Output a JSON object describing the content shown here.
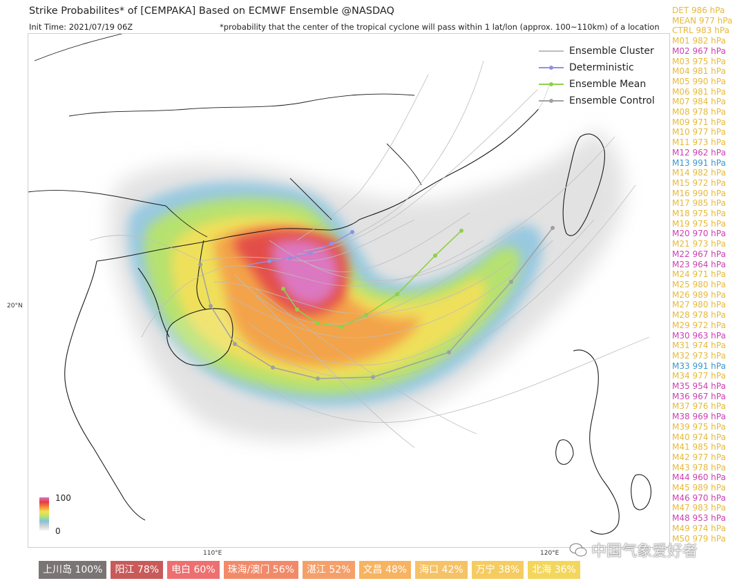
{
  "header": {
    "title": "Strike Probabilites* of [CEMPAKA] Based on ECMWF Ensemble  @NASDAQ",
    "init_time": "Init Time: 2021/07/19 06Z",
    "note": "*probability that the center of the tropical cyclone will pass within 1 lat/lon (approx. 100~110km) of a location"
  },
  "legend": {
    "items": [
      {
        "label": "Ensemble Cluster",
        "color": "#bdbdbd",
        "marker": "none"
      },
      {
        "label": "Deterministic",
        "color": "#9090e0",
        "marker": "dot"
      },
      {
        "label": "Ensemble Mean",
        "color": "#8ed04a",
        "marker": "dot"
      },
      {
        "label": "Ensemble Control",
        "color": "#a0a0a0",
        "marker": "dot"
      }
    ]
  },
  "members": [
    {
      "text": "DET 986 hPa",
      "color": "#e6b93a"
    },
    {
      "text": "MEAN 977 hPa",
      "color": "#e6b93a"
    },
    {
      "text": "CTRL 983 hPa",
      "color": "#e6b93a"
    },
    {
      "text": "M01 982 hPa",
      "color": "#e6b93a"
    },
    {
      "text": "M02 967 hPa",
      "color": "#cc3fb0"
    },
    {
      "text": "M03 975 hPa",
      "color": "#e6b93a"
    },
    {
      "text": "M04 981 hPa",
      "color": "#e6b93a"
    },
    {
      "text": "M05 990 hPa",
      "color": "#e6b93a"
    },
    {
      "text": "M06 981 hPa",
      "color": "#e6b93a"
    },
    {
      "text": "M07 984 hPa",
      "color": "#e6b93a"
    },
    {
      "text": "M08 978 hPa",
      "color": "#e6b93a"
    },
    {
      "text": "M09 971 hPa",
      "color": "#e6b93a"
    },
    {
      "text": "M10 977 hPa",
      "color": "#e6b93a"
    },
    {
      "text": "M11 973 hPa",
      "color": "#e6b93a"
    },
    {
      "text": "M12 962 hPa",
      "color": "#cc3fb0"
    },
    {
      "text": "M13 991 hPa",
      "color": "#3a98c8"
    },
    {
      "text": "M14 982 hPa",
      "color": "#e6b93a"
    },
    {
      "text": "M15 972 hPa",
      "color": "#e6b93a"
    },
    {
      "text": "M16 990 hPa",
      "color": "#e6b93a"
    },
    {
      "text": "M17 985 hPa",
      "color": "#e6b93a"
    },
    {
      "text": "M18 975 hPa",
      "color": "#e6b93a"
    },
    {
      "text": "M19 975 hPa",
      "color": "#e6b93a"
    },
    {
      "text": "M20 970 hPa",
      "color": "#cc3fb0"
    },
    {
      "text": "M21 973 hPa",
      "color": "#e6b93a"
    },
    {
      "text": "M22 967 hPa",
      "color": "#cc3fb0"
    },
    {
      "text": "M23 964 hPa",
      "color": "#cc3fb0"
    },
    {
      "text": "M24 971 hPa",
      "color": "#e6b93a"
    },
    {
      "text": "M25 980 hPa",
      "color": "#e6b93a"
    },
    {
      "text": "M26 989 hPa",
      "color": "#e6b93a"
    },
    {
      "text": "M27 980 hPa",
      "color": "#e6b93a"
    },
    {
      "text": "M28 978 hPa",
      "color": "#e6b93a"
    },
    {
      "text": "M29 972 hPa",
      "color": "#e6b93a"
    },
    {
      "text": "M30 963 hPa",
      "color": "#cc3fb0"
    },
    {
      "text": "M31 974 hPa",
      "color": "#e6b93a"
    },
    {
      "text": "M32 973 hPa",
      "color": "#e6b93a"
    },
    {
      "text": "M33 991 hPa",
      "color": "#3a98c8"
    },
    {
      "text": "M34 977 hPa",
      "color": "#e6b93a"
    },
    {
      "text": "M35 954 hPa",
      "color": "#cc3fb0"
    },
    {
      "text": "M36 967 hPa",
      "color": "#cc3fb0"
    },
    {
      "text": "M37 976 hPa",
      "color": "#e6b93a"
    },
    {
      "text": "M38 969 hPa",
      "color": "#cc3fb0"
    },
    {
      "text": "M39 975 hPa",
      "color": "#e6b93a"
    },
    {
      "text": "M40 974 hPa",
      "color": "#e6b93a"
    },
    {
      "text": "M41 985 hPa",
      "color": "#e6b93a"
    },
    {
      "text": "M42 977 hPa",
      "color": "#e6b93a"
    },
    {
      "text": "M43 978 hPa",
      "color": "#e6b93a"
    },
    {
      "text": "M44 960 hPa",
      "color": "#cc3fb0"
    },
    {
      "text": "M45 989 hPa",
      "color": "#e6b93a"
    },
    {
      "text": "M46 970 hPa",
      "color": "#cc3fb0"
    },
    {
      "text": "M47 983 hPa",
      "color": "#e6b93a"
    },
    {
      "text": "M48 953 hPa",
      "color": "#cc3fb0"
    },
    {
      "text": "M49 974 hPa",
      "color": "#e6b93a"
    },
    {
      "text": "M50 979 hPa",
      "color": "#e6b93a"
    }
  ],
  "colorbar": {
    "max": "100",
    "min": "0"
  },
  "axes": {
    "lat_label": "20°N",
    "lon_labels": [
      "110°E",
      "120°E"
    ]
  },
  "locations": [
    {
      "label": "上川岛 100%",
      "color": "#7a7474"
    },
    {
      "label": "阳江 78%",
      "color": "#c85a5a"
    },
    {
      "label": "电白 60%",
      "color": "#ee6f6f"
    },
    {
      "label": "珠海/澳门 56%",
      "color": "#f28a6a"
    },
    {
      "label": "湛江 52%",
      "color": "#f5a06a"
    },
    {
      "label": "文昌 48%",
      "color": "#f7b35f"
    },
    {
      "label": "海口 42%",
      "color": "#f6c265"
    },
    {
      "label": "万宁 38%",
      "color": "#f6cc60"
    },
    {
      "label": "北海 36%",
      "color": "#f3d65c"
    }
  ],
  "watermark": "中国气象爱好者"
}
